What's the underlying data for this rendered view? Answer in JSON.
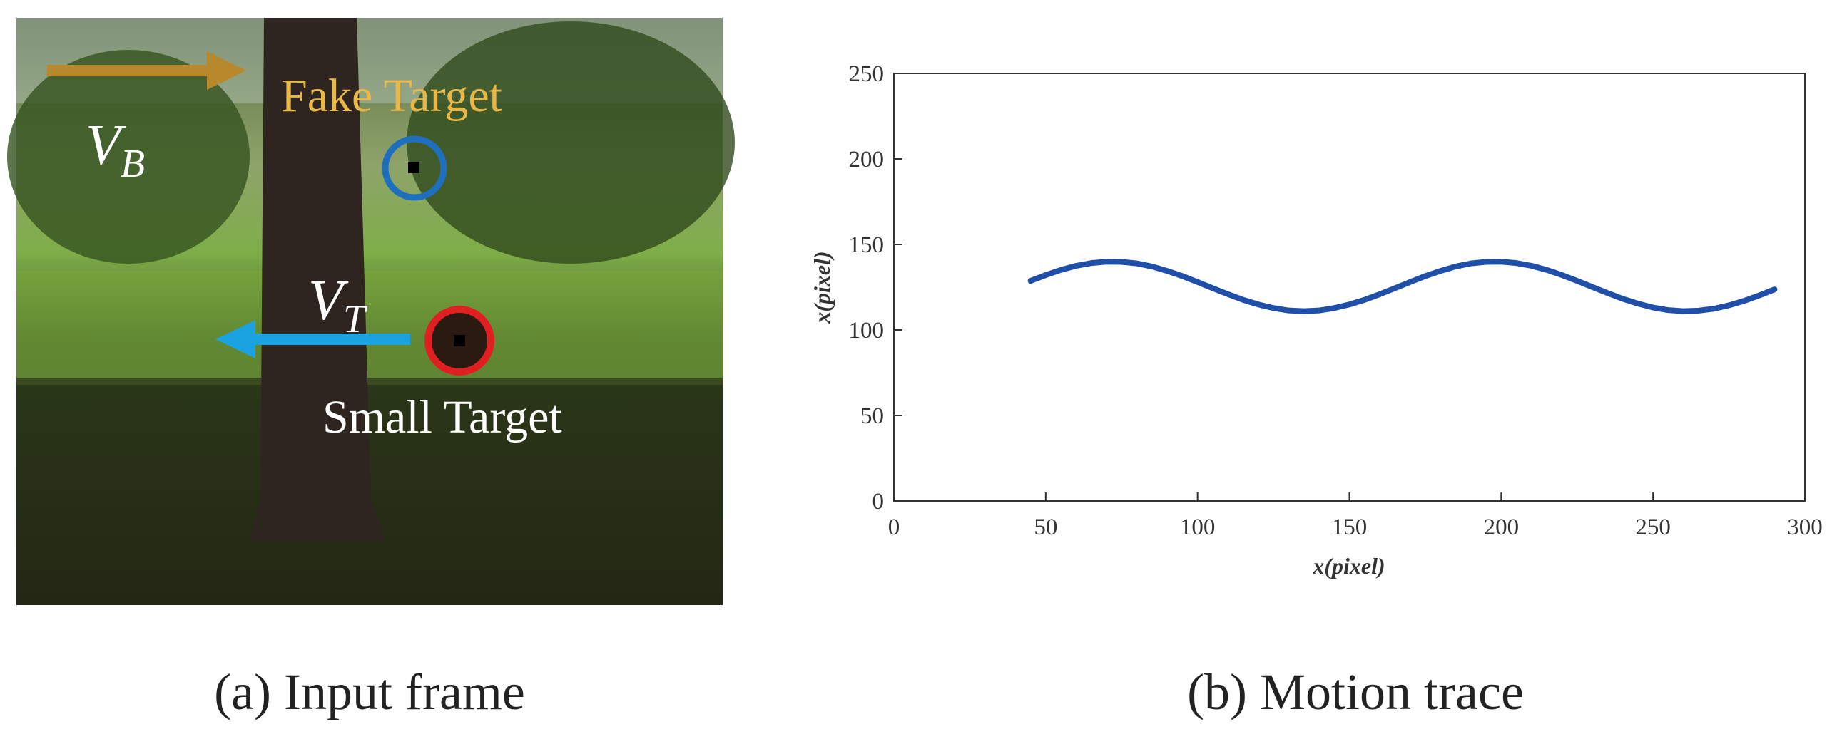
{
  "panel_a": {
    "fake_target": "Fake Target",
    "v_b": {
      "symbol": "V",
      "sub": "B"
    },
    "v_t": {
      "symbol": "V",
      "sub": "T"
    },
    "small_target": "Small Target",
    "caption": "(a) Input frame"
  },
  "chart_data": {
    "type": "line",
    "caption": "(b) Motion trace",
    "x_label": "x(pixel)",
    "y_label": "x(pixel)",
    "xlim": [
      0,
      300
    ],
    "xticks": [
      0,
      50,
      100,
      150,
      200,
      250,
      300
    ],
    "ylim": [
      0,
      250
    ],
    "yticks": [
      0,
      50,
      100,
      150,
      200,
      250
    ],
    "series": [
      {
        "color": "#1f4fa8",
        "x": [
          45,
          50,
          55,
          60,
          65,
          70,
          75,
          80,
          85,
          90,
          95,
          100,
          105,
          110,
          115,
          120,
          125,
          130,
          135,
          140,
          145,
          150,
          155,
          160,
          165,
          170,
          175,
          180,
          185,
          190,
          195,
          200,
          205,
          210,
          215,
          220,
          225,
          230,
          235,
          240,
          245,
          250,
          255,
          260,
          265,
          270,
          275,
          280,
          285,
          290
        ],
        "values": [
          128.7,
          132.1,
          135.1,
          137.5,
          139.1,
          139.9,
          139.8,
          138.9,
          137.1,
          134.5,
          131.5,
          128.0,
          124.4,
          120.9,
          117.6,
          114.9,
          112.8,
          111.4,
          111.0,
          111.4,
          112.8,
          114.9,
          117.6,
          120.9,
          124.4,
          128.0,
          131.5,
          134.5,
          137.1,
          138.9,
          139.8,
          139.9,
          139.1,
          137.5,
          135.1,
          132.1,
          128.7,
          125.1,
          121.6,
          118.2,
          115.4,
          113.1,
          111.6,
          111.0,
          111.3,
          112.4,
          114.4,
          117.0,
          120.2,
          123.7
        ]
      }
    ]
  }
}
